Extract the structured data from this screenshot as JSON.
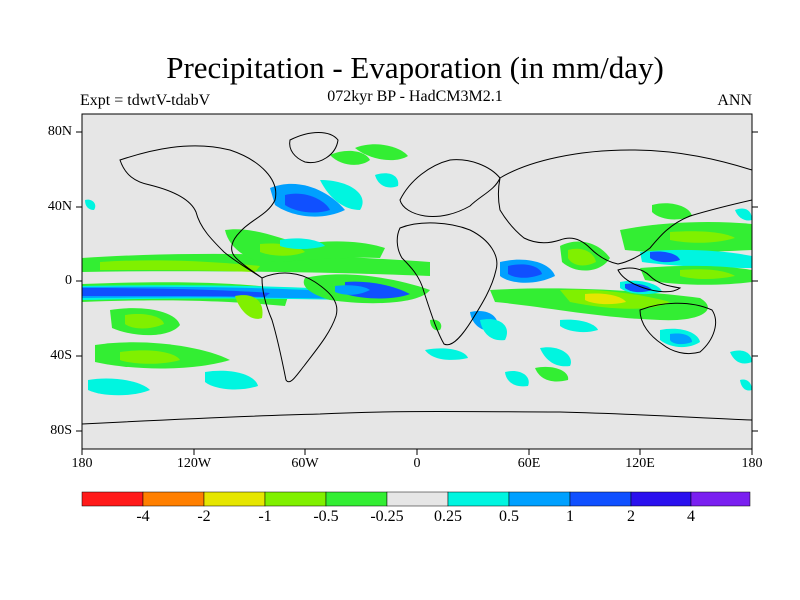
{
  "title": "Precipitation - Evaporation (in mm/day)",
  "subtitle": "072kyr BP - HadCM3M2.1",
  "experiment": "Expt = tdwtV-tdabV",
  "season": "ANN",
  "axes": {
    "y_ticks": [
      "80N",
      "40N",
      "0",
      "40S",
      "80S"
    ],
    "x_ticks": [
      "180",
      "120W",
      "60W",
      "0",
      "60E",
      "120E",
      "180"
    ]
  },
  "colorbar": {
    "colors": [
      "#ff1a1a",
      "#ff7f00",
      "#e6e600",
      "#80f000",
      "#33ee33",
      "#e6e6e6",
      "#00f5e0",
      "#00a0ff",
      "#1050ff",
      "#2a10ee",
      "#7a20f0"
    ],
    "labels": [
      "-4",
      "-2",
      "-1",
      "-0.5",
      "-0.25",
      "0.25",
      "0.5",
      "1",
      "2",
      "4"
    ]
  },
  "colors": {
    "land_ocean_background": "#e6e6e6",
    "coastline": "#000000"
  }
}
